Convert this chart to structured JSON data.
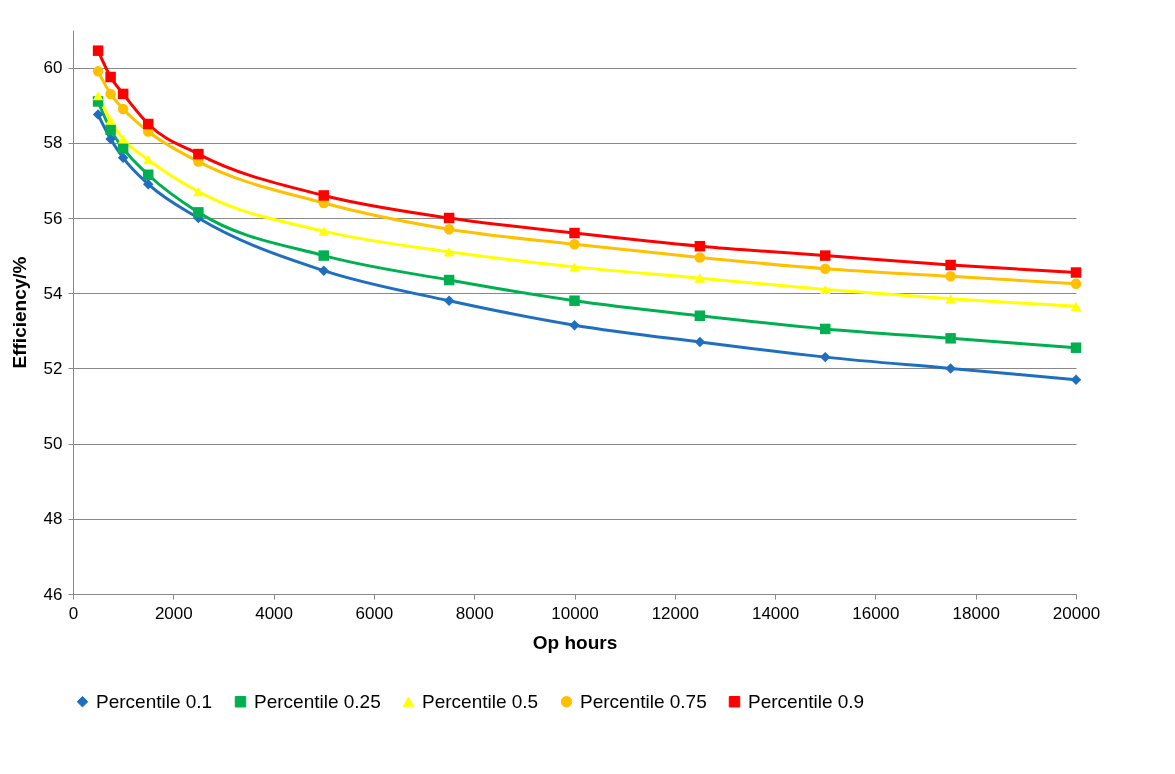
{
  "chart_data": {
    "type": "line",
    "xlabel": "Op hours",
    "ylabel": "Efficiency/%",
    "x": [
      500,
      750,
      1000,
      1500,
      2500,
      5000,
      7500,
      10000,
      12500,
      15000,
      17500,
      20000
    ],
    "series": [
      {
        "name": "Percentile 0.1",
        "color": "#1f6fc0",
        "marker": "diamond",
        "values": [
          58.75,
          58.1,
          57.6,
          56.9,
          56.0,
          54.6,
          53.8,
          53.15,
          52.7,
          52.3,
          52.0,
          51.7
        ]
      },
      {
        "name": "Percentile 0.25",
        "color": "#00b050",
        "marker": "square",
        "values": [
          59.1,
          58.35,
          57.85,
          57.15,
          56.15,
          55.0,
          54.35,
          53.8,
          53.4,
          53.05,
          52.8,
          52.55
        ]
      },
      {
        "name": "Percentile 0.5",
        "color": "#ffff00",
        "marker": "triangle",
        "values": [
          59.25,
          58.6,
          58.1,
          57.55,
          56.7,
          55.65,
          55.1,
          54.7,
          54.4,
          54.1,
          53.85,
          53.65
        ]
      },
      {
        "name": "Percentile 0.75",
        "color": "#ffc000",
        "marker": "circle",
        "values": [
          59.9,
          59.3,
          58.9,
          58.3,
          57.5,
          56.4,
          55.7,
          55.3,
          54.95,
          54.65,
          54.45,
          54.25
        ]
      },
      {
        "name": "Percentile 0.9",
        "color": "#ff0000",
        "marker": "square",
        "values": [
          60.45,
          59.75,
          59.3,
          58.5,
          57.7,
          56.6,
          56.0,
          55.6,
          55.25,
          55.0,
          54.75,
          54.55
        ]
      }
    ],
    "xlim": [
      0,
      20000
    ],
    "xticks": [
      0,
      2000,
      4000,
      6000,
      8000,
      10000,
      12000,
      14000,
      16000,
      18000,
      20000
    ],
    "ylim": [
      46,
      61
    ],
    "yticks": [
      46,
      48,
      50,
      52,
      54,
      56,
      58,
      60
    ],
    "grid": "y",
    "legend": "bottom",
    "line_style": "solid"
  }
}
